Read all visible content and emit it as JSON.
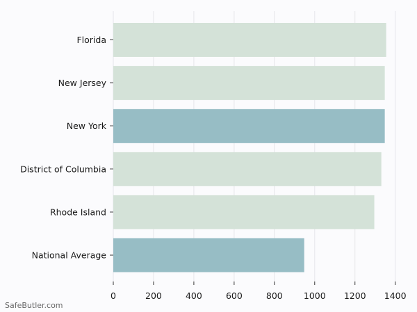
{
  "chart_data": {
    "type": "bar",
    "orientation": "horizontal",
    "title": "",
    "xlabel": "",
    "ylabel": "",
    "categories": [
      "Florida",
      "New Jersey",
      "New York",
      "District of Columbia",
      "Rhode Island",
      "National Average"
    ],
    "values": [
      1355,
      1348,
      1348,
      1331,
      1296,
      948
    ],
    "highlight": [
      false,
      false,
      true,
      false,
      false,
      true
    ],
    "xlim": [
      0,
      1400
    ],
    "xticks": [
      0,
      200,
      400,
      600,
      800,
      1000,
      1200,
      1400
    ],
    "grid": "vertical",
    "legend": null
  },
  "colors": {
    "background": "#fbfbfd",
    "bar_default": "#d4e2d8",
    "bar_highlight": "#97bdc5",
    "grid": "#e6e6ea",
    "text": "#1a1a1a"
  },
  "watermark": "SafeButler.com"
}
